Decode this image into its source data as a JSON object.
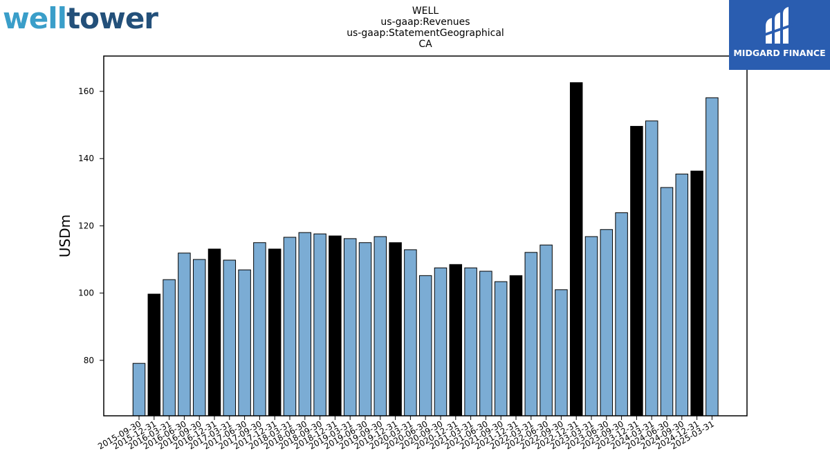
{
  "logos": {
    "left_part1": "well",
    "left_part2": "tower",
    "right_text": "MIDGARD FINANCE"
  },
  "chart_data": {
    "type": "bar",
    "title_lines": [
      "WELL",
      "us-gaap:Revenues",
      "us-gaap:StatementGeographical",
      "CA"
    ],
    "xlabel": "",
    "ylabel": "USDm",
    "ylim": [
      63.5,
      170.5
    ],
    "yticks": [
      80,
      100,
      120,
      140,
      160
    ],
    "categories": [
      "2015-09-30",
      "2015-12-31",
      "2016-03-31",
      "2016-06-30",
      "2016-09-30",
      "2016-12-31",
      "2017-03-31",
      "2017-06-30",
      "2017-09-30",
      "2017-12-31",
      "2018-03-31",
      "2018-06-30",
      "2018-09-30",
      "2018-12-31",
      "2019-03-31",
      "2019-06-30",
      "2019-09-30",
      "2019-12-31",
      "2020-03-31",
      "2020-06-30",
      "2020-09-30",
      "2020-12-31",
      "2021-03-31",
      "2021-06-30",
      "2021-09-30",
      "2021-12-31",
      "2022-03-31",
      "2022-06-30",
      "2022-09-30",
      "2022-12-31",
      "2023-03-31",
      "2023-06-30",
      "2023-09-30",
      "2023-12-31",
      "2024-03-31",
      "2024-06-30",
      "2024-09-30",
      "2024-12-31",
      "2025-03-31"
    ],
    "values": [
      79.1,
      99.7,
      104.0,
      111.9,
      110.0,
      113.1,
      109.8,
      106.9,
      115.0,
      113.1,
      116.6,
      118.0,
      117.6,
      117.0,
      116.2,
      115.0,
      116.8,
      115.0,
      112.9,
      105.2,
      107.5,
      108.5,
      107.5,
      106.5,
      103.4,
      105.2,
      112.1,
      114.3,
      101.0,
      162.6,
      116.8,
      118.9,
      123.9,
      149.6,
      151.2,
      131.4,
      135.4,
      136.3,
      158.1
    ],
    "highlight": [
      false,
      true,
      false,
      false,
      false,
      true,
      false,
      false,
      false,
      true,
      false,
      false,
      false,
      true,
      false,
      false,
      false,
      true,
      false,
      false,
      false,
      true,
      false,
      false,
      false,
      true,
      false,
      false,
      false,
      true,
      false,
      false,
      false,
      true,
      false,
      false,
      false,
      true,
      false
    ],
    "colors": {
      "bar": "#7bacd4",
      "highlight": "#000000",
      "edge": "#000000"
    }
  }
}
